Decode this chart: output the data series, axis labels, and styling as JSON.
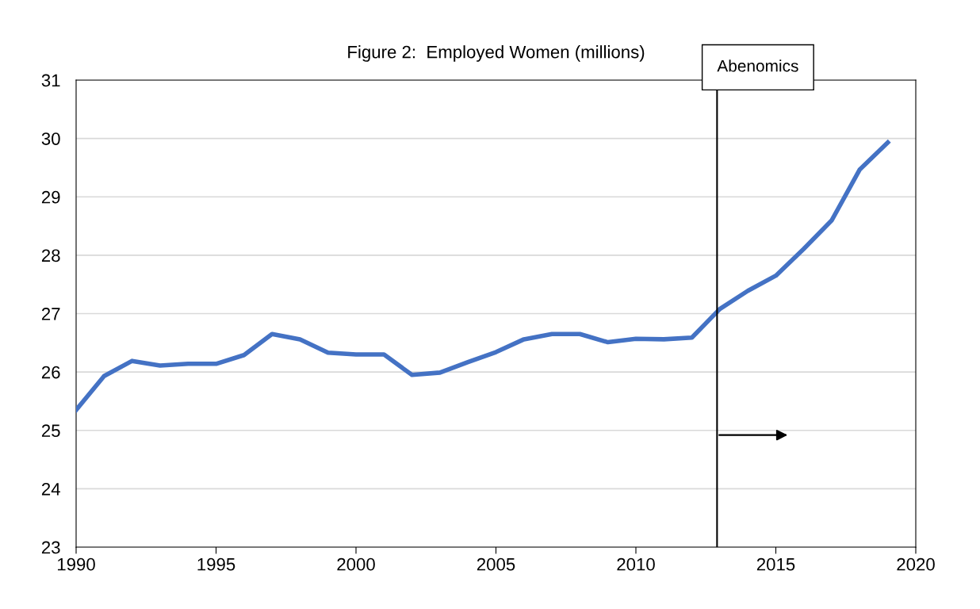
{
  "chart_data": {
    "type": "line",
    "title": "Figure 2:  Employed Women (millions)",
    "x": [
      1990,
      1991,
      1992,
      1993,
      1994,
      1995,
      1996,
      1997,
      1998,
      1999,
      2000,
      2001,
      2002,
      2003,
      2004,
      2005,
      2006,
      2007,
      2008,
      2009,
      2010,
      2011,
      2012,
      2013,
      2014,
      2015,
      2016,
      2017,
      2018,
      2019
    ],
    "series": [
      {
        "color": "#4472c4",
        "values": [
          25.35,
          25.93,
          26.19,
          26.11,
          26.14,
          26.14,
          26.29,
          26.65,
          26.56,
          26.33,
          26.3,
          26.3,
          25.95,
          25.99,
          26.17,
          26.34,
          26.56,
          26.65,
          26.65,
          26.51,
          26.57,
          26.56,
          26.59,
          27.08,
          27.39,
          27.65,
          28.11,
          28.6,
          29.47,
          29.93
        ]
      }
    ],
    "xlim": [
      1990,
      2020
    ],
    "xticks": [
      1990,
      1995,
      2000,
      2005,
      2010,
      2015,
      2020
    ],
    "ylim": [
      23,
      31
    ],
    "yticks": [
      23,
      24,
      25,
      26,
      27,
      28,
      29,
      30,
      31
    ],
    "grid": "y",
    "legend": false,
    "marker": "none",
    "line_style": "solid",
    "ref_lines": [
      {
        "axis": "x",
        "value": 2012.9,
        "label": "Abenomics",
        "color": "#000000"
      }
    ]
  }
}
